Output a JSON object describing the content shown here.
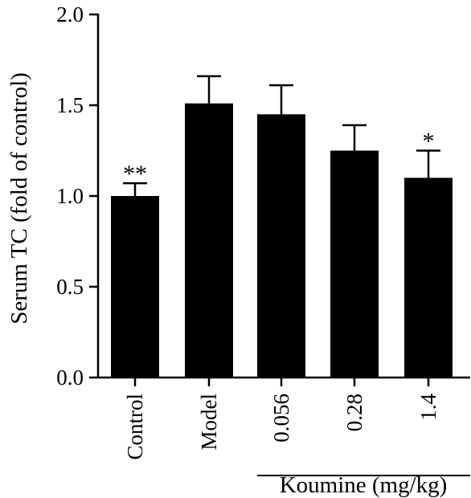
{
  "chart_data": {
    "type": "bar",
    "categories": [
      "Control",
      "Model",
      "0.056",
      "0.28",
      "1.4"
    ],
    "values": [
      1.0,
      1.51,
      1.45,
      1.25,
      1.1
    ],
    "errors": [
      0.07,
      0.15,
      0.16,
      0.14,
      0.15
    ],
    "significance": [
      "**",
      "",
      "",
      "",
      "*"
    ],
    "ylabel": "Serum TC (fold of control)",
    "group_label": "Koumine (mg/kg)",
    "group_categories": [
      "0.056",
      "0.28",
      "1.4"
    ],
    "ylim": [
      0,
      2.0
    ],
    "yticks": [
      "0.0",
      "0.5",
      "1.0",
      "1.5",
      "2.0"
    ],
    "bar_color": "#000000",
    "grid": false
  }
}
